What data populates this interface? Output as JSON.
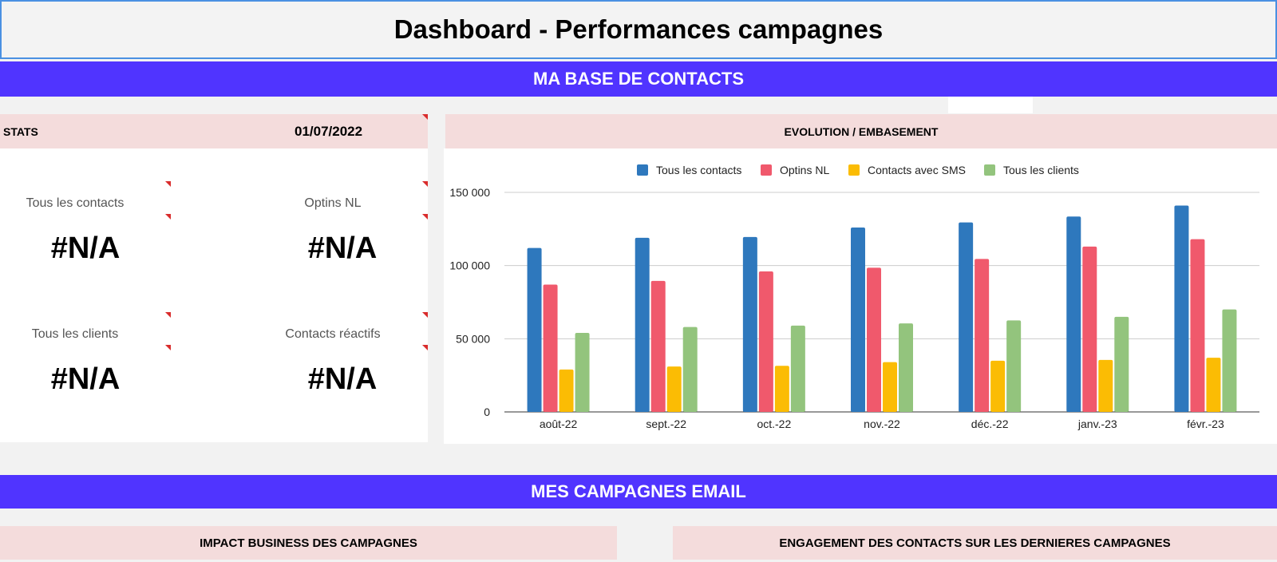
{
  "header": {
    "title": "Dashboard - Performances campagnes"
  },
  "sections": {
    "contacts": "MA BASE DE CONTACTS",
    "campaigns": "MES CAMPAGNES EMAIL"
  },
  "stats": {
    "label": "STATS",
    "date": "01/07/2022",
    "kpis": [
      {
        "label": "Tous les contacts",
        "value": "#N/A"
      },
      {
        "label": "Optins NL",
        "value": "#N/A"
      },
      {
        "label": "Tous les clients",
        "value": "#N/A"
      },
      {
        "label": "Contacts réactifs",
        "value": "#N/A"
      }
    ]
  },
  "evolution": {
    "title": "EVOLUTION / EMBASEMENT"
  },
  "campaign_panels": {
    "impact": "IMPACT BUSINESS DES CAMPAGNES",
    "engagement": "ENGAGEMENT DES CONTACTS SUR LES DERNIERES CAMPAGNES"
  },
  "colors": {
    "band": "#5034ff",
    "pink": "#f4dcdc",
    "note_marker": "#d92c2c"
  },
  "chart_data": {
    "type": "bar",
    "categories": [
      "août-22",
      "sept.-22",
      "oct.-22",
      "nov.-22",
      "déc.-22",
      "janv.-23",
      "févr.-23"
    ],
    "series": [
      {
        "name": "Tous les contacts",
        "color": "#2e78bd",
        "values": [
          112000,
          119000,
          119500,
          126000,
          129500,
          133500,
          141000
        ]
      },
      {
        "name": "Optins NL",
        "color": "#f0596c",
        "values": [
          87000,
          89500,
          96000,
          98500,
          104500,
          113000,
          118000
        ]
      },
      {
        "name": "Contacts avec SMS",
        "color": "#fbbc04",
        "values": [
          29000,
          31000,
          31500,
          34000,
          35000,
          35500,
          37000
        ]
      },
      {
        "name": "Tous les clients",
        "color": "#93c47d",
        "values": [
          54000,
          58000,
          59000,
          60500,
          62500,
          65000,
          70000
        ]
      }
    ],
    "yticks": [
      "0",
      "50 000",
      "100 000",
      "150 000"
    ],
    "ytick_values": [
      0,
      50000,
      100000,
      150000
    ],
    "ylim": [
      0,
      150000
    ],
    "legend": "top",
    "grid": true
  }
}
